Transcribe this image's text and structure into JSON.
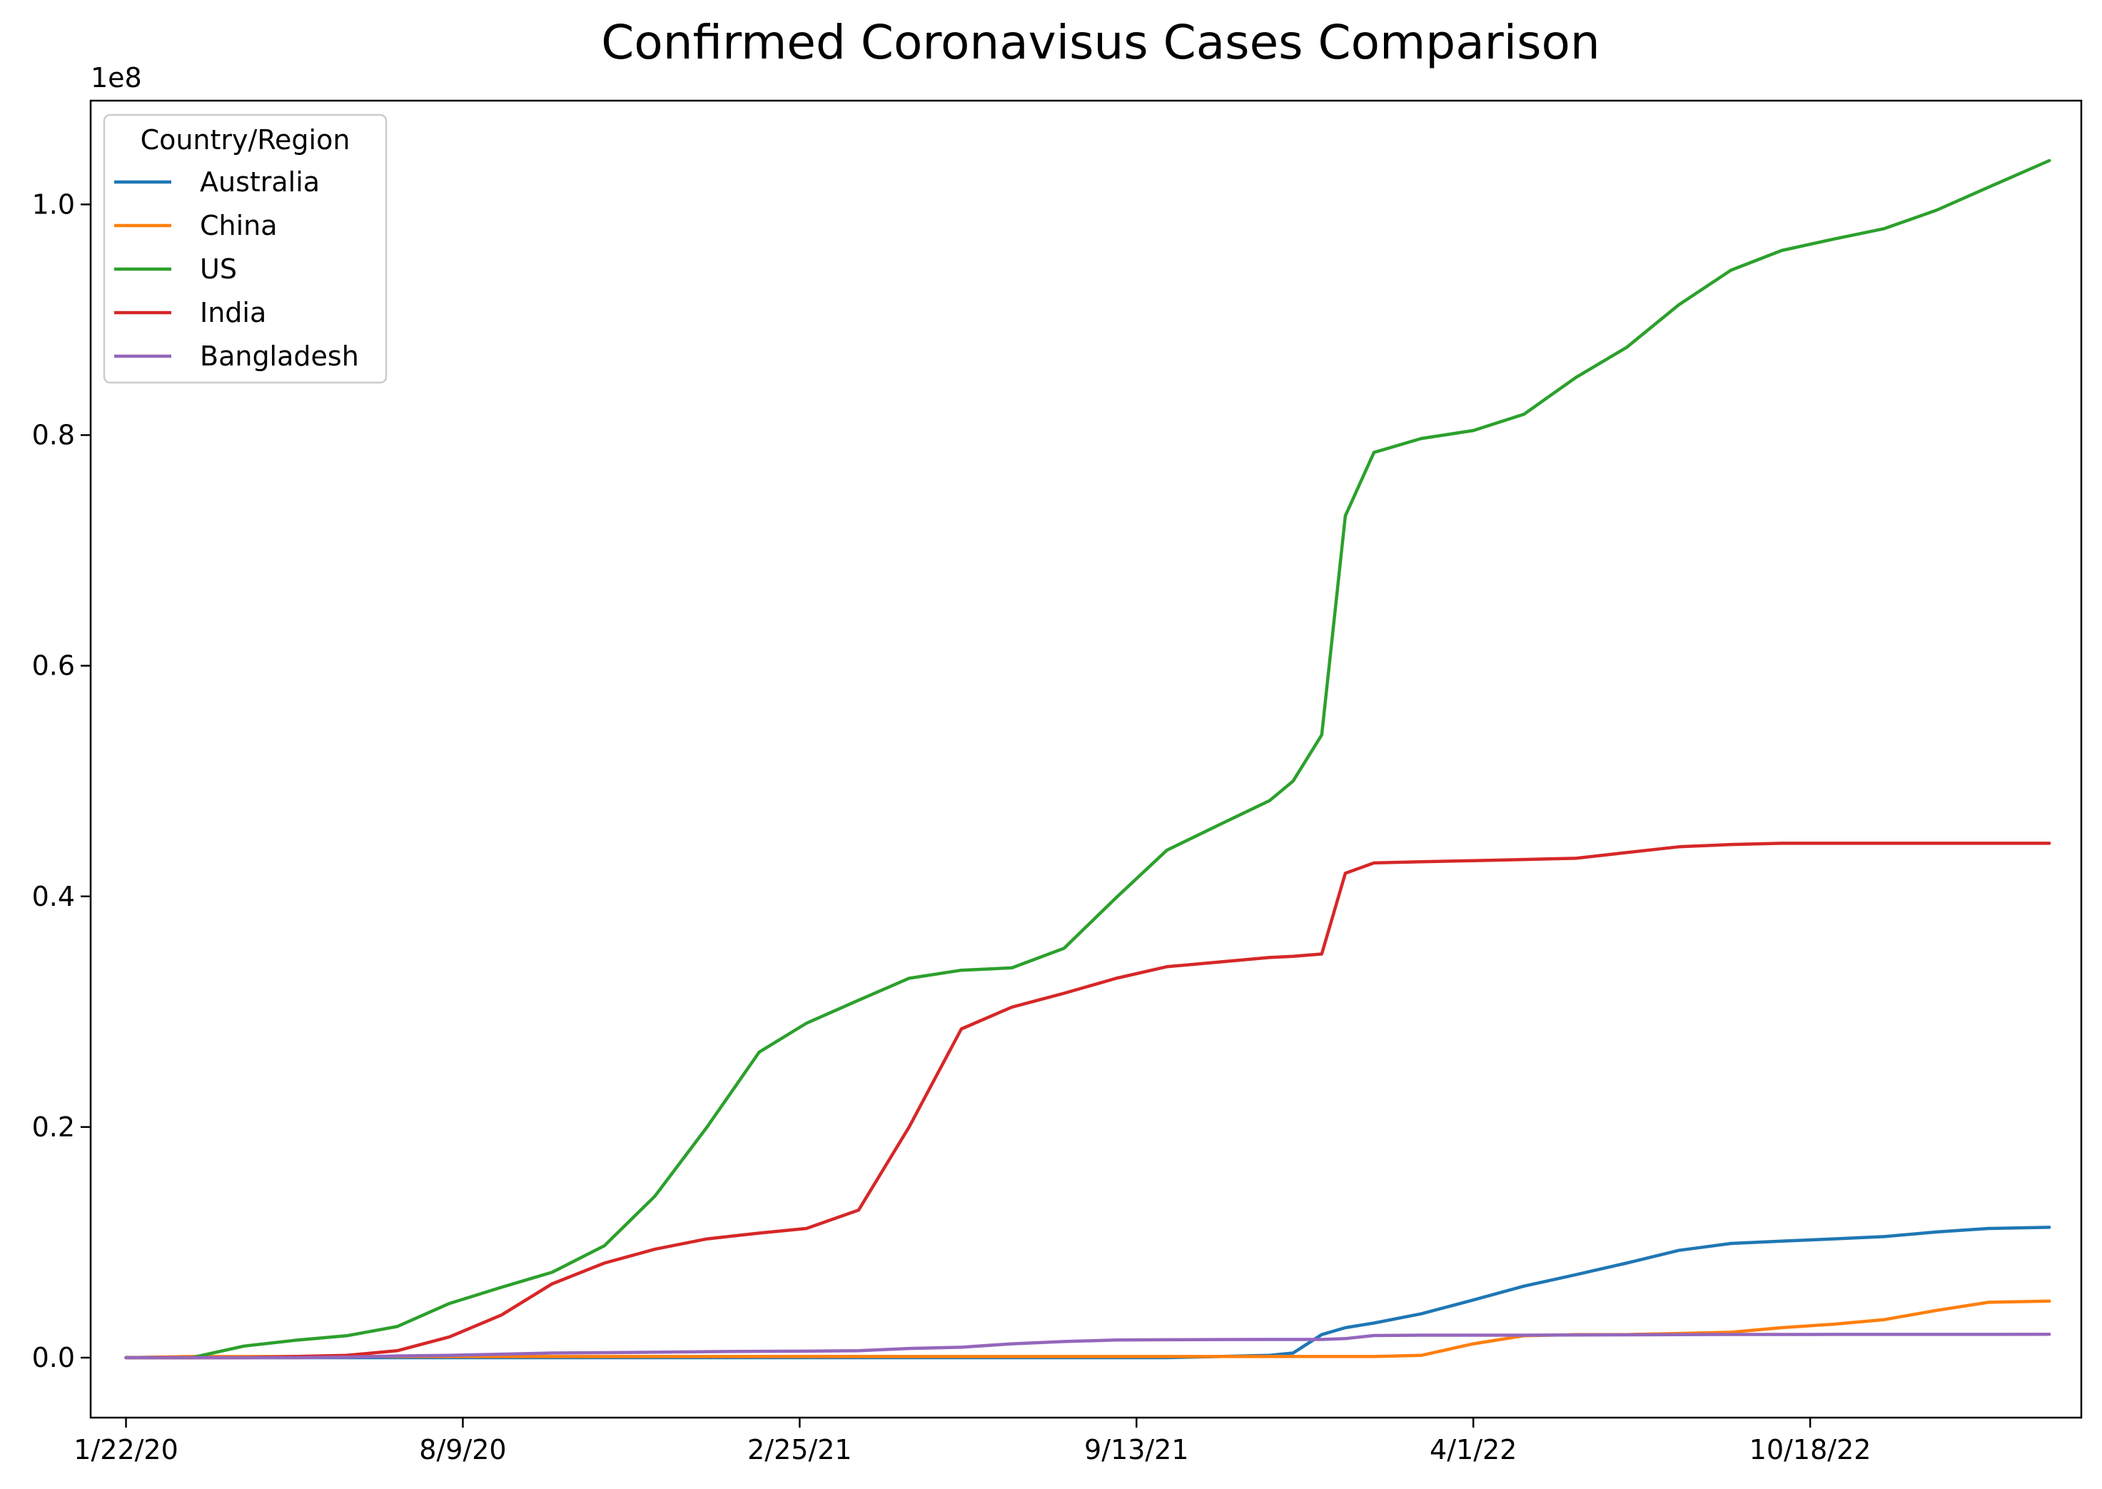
{
  "chart_data": {
    "type": "line",
    "title": "Confirmed Coronavisus Cases Comparison",
    "xlabel": "",
    "ylabel": "",
    "y_offset_label": "1e8",
    "x_tick_labels": [
      "1/22/20",
      "8/9/20",
      "2/25/21",
      "9/13/21",
      "4/1/22",
      "10/18/22"
    ],
    "y_tick_labels": [
      "0.0",
      "0.2",
      "0.4",
      "0.6",
      "0.8",
      "1.0"
    ],
    "y_ticks": [
      0,
      0.2,
      0.4,
      0.6,
      0.8,
      1.0
    ],
    "xlim": [
      "2020-01-01",
      "2023-03-28"
    ],
    "ylim": [
      -0.052,
      1.09
    ],
    "y_scale_note": "values in units of 1e8 cases",
    "legend": {
      "title": "Country/Region",
      "placement": "top-left"
    },
    "grid": false,
    "x": [
      "2020-01-22",
      "2020-03-01",
      "2020-04-01",
      "2020-05-01",
      "2020-06-01",
      "2020-07-01",
      "2020-08-01",
      "2020-09-01",
      "2020-10-01",
      "2020-11-01",
      "2020-12-01",
      "2021-01-01",
      "2021-02-01",
      "2021-03-01",
      "2021-04-01",
      "2021-05-01",
      "2021-06-01",
      "2021-07-01",
      "2021-08-01",
      "2021-09-01",
      "2021-10-01",
      "2021-11-01",
      "2021-12-01",
      "2021-12-15",
      "2022-01-01",
      "2022-01-15",
      "2022-02-01",
      "2022-03-01",
      "2022-04-01",
      "2022-05-01",
      "2022-06-01",
      "2022-07-01",
      "2022-08-01",
      "2022-09-01",
      "2022-10-01",
      "2022-11-01",
      "2022-12-01",
      "2023-01-01",
      "2023-02-01",
      "2023-03-09"
    ],
    "series": [
      {
        "name": "Australia",
        "color": "#1f77b4",
        "values": [
          0,
          0,
          0,
          0,
          0,
          0,
          0,
          0,
          0,
          0,
          0,
          0,
          0,
          0,
          0,
          0,
          0,
          0,
          0,
          0,
          0,
          0.001,
          0.002,
          0.004,
          0.02,
          0.026,
          0.03,
          0.038,
          0.05,
          0.062,
          0.072,
          0.082,
          0.093,
          0.099,
          0.101,
          0.103,
          0.105,
          0.109,
          0.112,
          0.113
        ]
      },
      {
        "name": "China",
        "color": "#ff7f0e",
        "values": [
          0,
          0.001,
          0.001,
          0.001,
          0.001,
          0.001,
          0.001,
          0.001,
          0.001,
          0.001,
          0.001,
          0.001,
          0.001,
          0.001,
          0.001,
          0.001,
          0.001,
          0.001,
          0.001,
          0.001,
          0.001,
          0.001,
          0.001,
          0.001,
          0.001,
          0.001,
          0.001,
          0.002,
          0.012,
          0.019,
          0.02,
          0.02,
          0.021,
          0.022,
          0.026,
          0.029,
          0.033,
          0.041,
          0.048,
          0.049
        ]
      },
      {
        "name": "US",
        "color": "#2ca02c",
        "values": [
          0,
          0,
          0.01,
          0.015,
          0.019,
          0.027,
          0.047,
          0.061,
          0.074,
          0.097,
          0.14,
          0.2,
          0.265,
          0.29,
          0.31,
          0.329,
          0.336,
          0.338,
          0.355,
          0.399,
          0.44,
          0.462,
          0.483,
          0.5,
          0.54,
          0.73,
          0.785,
          0.797,
          0.804,
          0.818,
          0.85,
          0.876,
          0.913,
          0.943,
          0.96,
          0.97,
          0.979,
          0.995,
          1.015,
          1.038
        ]
      },
      {
        "name": "India",
        "color": "#d62728",
        "values": [
          0,
          0,
          0,
          0.001,
          0.002,
          0.006,
          0.018,
          0.037,
          0.064,
          0.082,
          0.094,
          0.103,
          0.108,
          0.112,
          0.128,
          0.2,
          0.285,
          0.304,
          0.316,
          0.329,
          0.339,
          0.343,
          0.347,
          0.348,
          0.35,
          0.42,
          0.429,
          0.43,
          0.431,
          0.432,
          0.433,
          0.438,
          0.443,
          0.445,
          0.446,
          0.446,
          0.446,
          0.446,
          0.446,
          0.446
        ]
      },
      {
        "name": "Bangladesh",
        "color": "#9467bd",
        "values": [
          0,
          0,
          0,
          0,
          0.0005,
          0.0015,
          0.002,
          0.003,
          0.004,
          0.0043,
          0.0047,
          0.0052,
          0.0055,
          0.0056,
          0.006,
          0.008,
          0.009,
          0.012,
          0.014,
          0.0153,
          0.0155,
          0.0157,
          0.0158,
          0.0158,
          0.0158,
          0.0165,
          0.0192,
          0.0195,
          0.0195,
          0.0195,
          0.0196,
          0.0198,
          0.02,
          0.0201,
          0.0201,
          0.0202,
          0.0202,
          0.0202,
          0.0202,
          0.0203
        ]
      }
    ]
  }
}
